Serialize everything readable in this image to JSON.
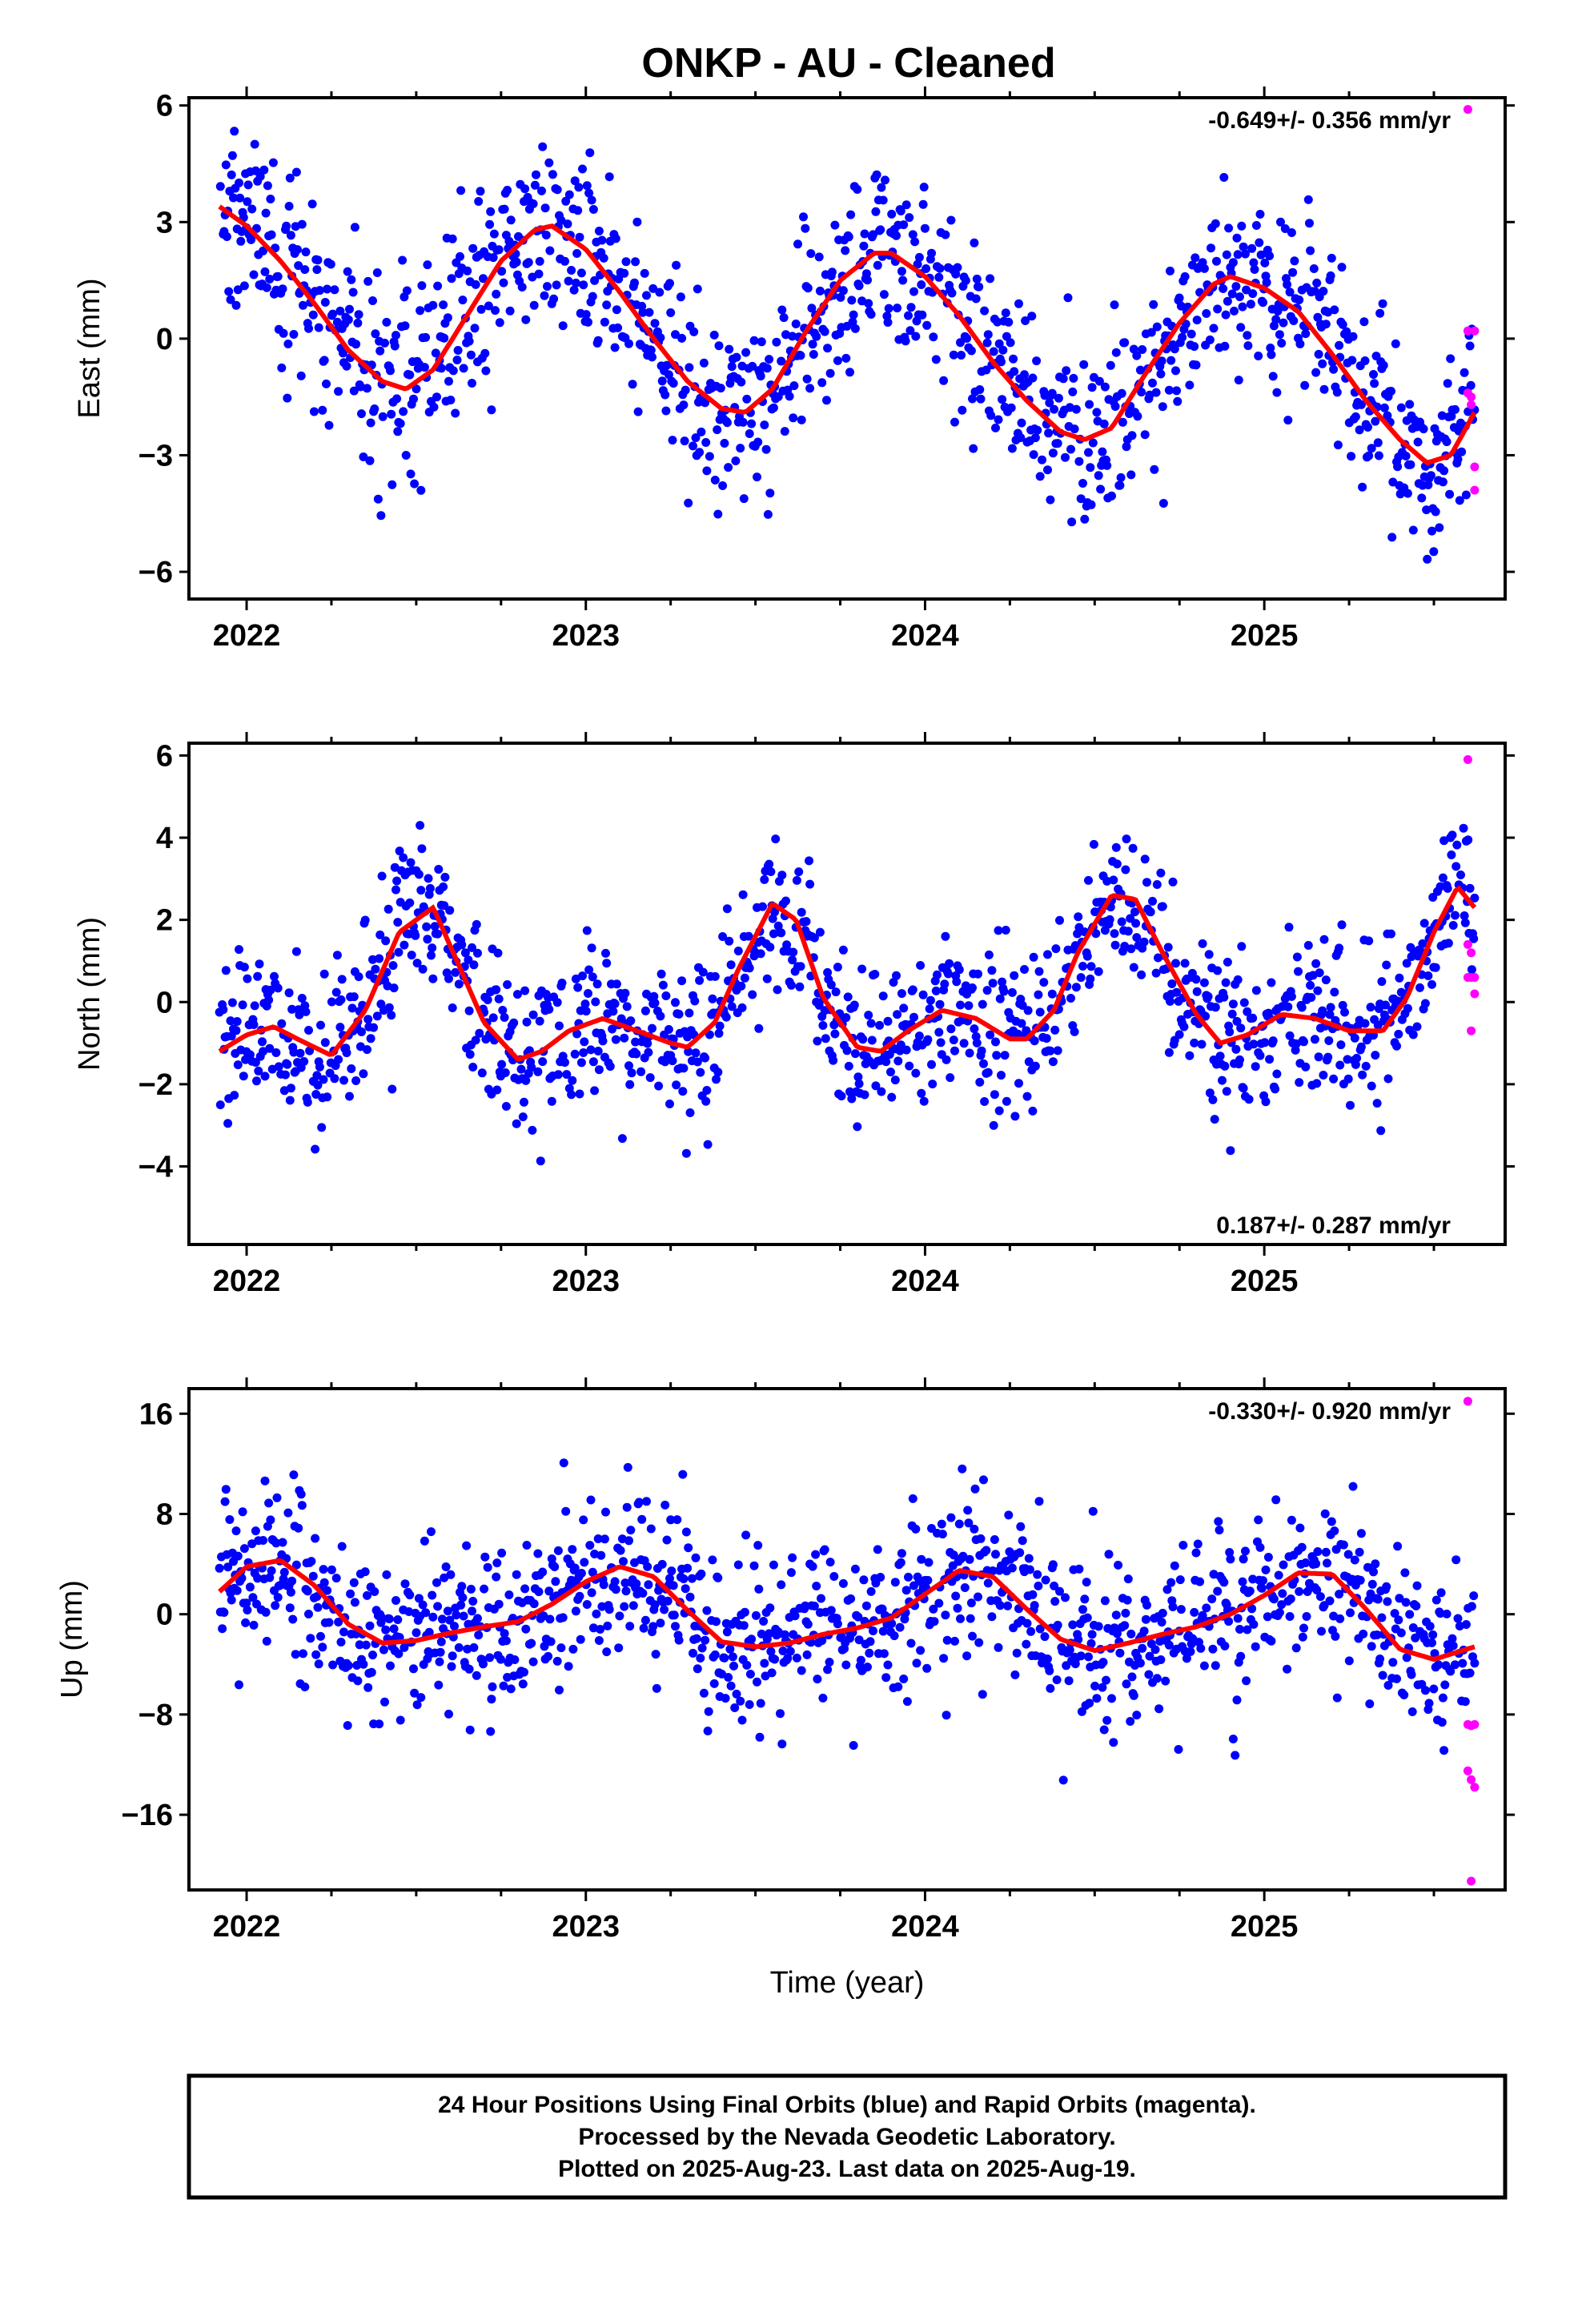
{
  "title": "ONKP  - AU - Cleaned",
  "xlabel": "Time (year)",
  "x_tick_labels": [
    "2022",
    "2023",
    "2024",
    "2025"
  ],
  "footer": {
    "line1": "24 Hour Positions Using Final Orbits (blue) and Rapid Orbits (magenta).",
    "line2": "Processed by the Nevada Geodetic Laboratory.",
    "line3": "Plotted on 2025-Aug-23. Last data on 2025-Aug-19."
  },
  "colors": {
    "final_orbits": "#0000ff",
    "rapid_orbits": "#ff00ff",
    "fit": "#ff0000"
  },
  "chart_data": [
    {
      "type": "scatter",
      "ylabel": "East (mm)",
      "rate_text": "-0.649+/- 0.356 mm/yr",
      "rate_position": "top-right",
      "xlim": [
        2021.83,
        2025.71
      ],
      "ylim": [
        -6.7,
        6.2
      ],
      "yticks": [
        6,
        3,
        0,
        -3,
        -6
      ],
      "ytick_labels": [
        "6",
        "3",
        "0",
        "−3",
        "−6"
      ],
      "fit_curve": {
        "x": [
          2021.92,
          2022.0,
          2022.1,
          2022.2,
          2022.3,
          2022.4,
          2022.47,
          2022.55,
          2022.65,
          2022.75,
          2022.85,
          2022.9,
          2023.0,
          2023.1,
          2023.2,
          2023.3,
          2023.4,
          2023.47,
          2023.55,
          2023.65,
          2023.75,
          2023.85,
          2023.9,
          2024.0,
          2024.1,
          2024.2,
          2024.3,
          2024.4,
          2024.47,
          2024.55,
          2024.65,
          2024.75,
          2024.85,
          2024.9,
          2025.0,
          2025.1,
          2025.2,
          2025.3,
          2025.4,
          2025.48,
          2025.55,
          2025.62
        ],
        "y": [
          3.4,
          2.9,
          2.0,
          0.9,
          -0.3,
          -1.1,
          -1.3,
          -0.8,
          0.6,
          2.0,
          2.8,
          2.9,
          2.3,
          1.2,
          0.0,
          -1.1,
          -1.8,
          -1.9,
          -1.3,
          0.2,
          1.5,
          2.2,
          2.2,
          1.6,
          0.6,
          -0.6,
          -1.6,
          -2.4,
          -2.6,
          -2.3,
          -0.9,
          0.4,
          1.4,
          1.6,
          1.3,
          0.7,
          -0.4,
          -1.6,
          -2.6,
          -3.2,
          -3.0,
          -1.9
        ]
      },
      "final_orbits": {
        "n_days": 1353,
        "x_start": 2021.92,
        "x_end": 2025.62,
        "model": "fit_curve plus daily scatter",
        "scatter_sd": 1.2
      },
      "rapid_orbits": {
        "x": [
          2025.6,
          2025.6,
          2025.6,
          2025.61,
          2025.61,
          2025.62,
          2025.62,
          2025.62
        ],
        "y": [
          5.9,
          0.2,
          -1.4,
          -1.5,
          -1.7,
          -3.3,
          -3.9,
          0.2
        ]
      }
    },
    {
      "type": "scatter",
      "ylabel": "North (mm)",
      "rate_text": "0.187+/- 0.287 mm/yr",
      "rate_position": "bottom-right",
      "xlim": [
        2021.83,
        2025.71
      ],
      "ylim": [
        -5.9,
        6.3
      ],
      "yticks": [
        6,
        4,
        2,
        0,
        -2,
        -4
      ],
      "ytick_labels": [
        "6",
        "4",
        "2",
        "0",
        "−2",
        "−4"
      ],
      "fit_curve": {
        "x": [
          2021.92,
          2022.0,
          2022.08,
          2022.15,
          2022.25,
          2022.35,
          2022.45,
          2022.55,
          2022.62,
          2022.7,
          2022.8,
          2022.87,
          2022.95,
          2023.05,
          2023.15,
          2023.25,
          2023.3,
          2023.38,
          2023.45,
          2023.55,
          2023.62,
          2023.7,
          2023.8,
          2023.87,
          2023.95,
          2024.05,
          2024.15,
          2024.25,
          2024.3,
          2024.38,
          2024.45,
          2024.55,
          2024.62,
          2024.7,
          2024.8,
          2024.87,
          2024.95,
          2025.05,
          2025.15,
          2025.25,
          2025.35,
          2025.42,
          2025.5,
          2025.57,
          2025.62
        ],
        "y": [
          -1.2,
          -0.8,
          -0.6,
          -0.9,
          -1.3,
          -0.2,
          1.7,
          2.3,
          1.0,
          -0.5,
          -1.4,
          -1.2,
          -0.7,
          -0.4,
          -0.7,
          -1.0,
          -1.1,
          -0.5,
          0.8,
          2.4,
          2.0,
          0.1,
          -1.1,
          -1.2,
          -0.7,
          -0.2,
          -0.4,
          -0.9,
          -0.9,
          -0.2,
          1.2,
          2.6,
          2.5,
          1.2,
          -0.3,
          -1.0,
          -0.8,
          -0.3,
          -0.4,
          -0.7,
          -0.7,
          0.1,
          1.7,
          2.8,
          2.3
        ]
      },
      "final_orbits": {
        "n_days": 1353,
        "x_start": 2021.92,
        "x_end": 2025.62,
        "model": "fit_curve plus daily scatter",
        "scatter_sd": 0.95
      },
      "rapid_orbits": {
        "x": [
          2025.6,
          2025.6,
          2025.6,
          2025.61,
          2025.61,
          2025.61,
          2025.62,
          2025.62
        ],
        "y": [
          5.9,
          1.4,
          0.6,
          1.2,
          0.6,
          -0.7,
          0.6,
          0.2
        ]
      }
    },
    {
      "type": "scatter",
      "ylabel": "Up (mm)",
      "rate_text": "-0.330+/- 0.920 mm/yr",
      "rate_position": "top-right",
      "xlim": [
        2021.83,
        2025.71
      ],
      "ylim": [
        -22,
        18
      ],
      "yticks": [
        16,
        8,
        0,
        -8,
        -16
      ],
      "ytick_labels": [
        "16",
        "8",
        "0",
        "−8",
        "−16"
      ],
      "fit_curve": {
        "x": [
          2021.92,
          2022.0,
          2022.1,
          2022.2,
          2022.3,
          2022.4,
          2022.5,
          2022.6,
          2022.7,
          2022.8,
          2022.9,
          2023.0,
          2023.1,
          2023.2,
          2023.3,
          2023.4,
          2023.5,
          2023.6,
          2023.7,
          2023.8,
          2023.9,
          2024.0,
          2024.1,
          2024.2,
          2024.3,
          2024.4,
          2024.5,
          2024.6,
          2024.7,
          2024.8,
          2024.9,
          2025.0,
          2025.1,
          2025.2,
          2025.3,
          2025.4,
          2025.5,
          2025.62
        ],
        "y": [
          1.8,
          3.8,
          4.3,
          2.3,
          -0.8,
          -2.3,
          -2.1,
          -1.5,
          -1.0,
          -0.6,
          0.8,
          2.6,
          3.8,
          3.0,
          0.3,
          -2.2,
          -2.6,
          -2.3,
          -1.6,
          -1.1,
          -0.3,
          1.6,
          3.5,
          3.0,
          0.4,
          -2.0,
          -2.9,
          -2.3,
          -1.6,
          -1.0,
          0.0,
          1.5,
          3.3,
          3.2,
          0.4,
          -2.8,
          -3.6,
          -2.6
        ]
      },
      "final_orbits": {
        "n_days": 1353,
        "x_start": 2021.92,
        "x_end": 2025.62,
        "model": "fit_curve plus daily scatter",
        "scatter_sd": 3.3
      },
      "rapid_orbits": {
        "x": [
          2025.6,
          2025.6,
          2025.6,
          2025.61,
          2025.61,
          2025.61,
          2025.62,
          2025.62
        ],
        "y": [
          17.0,
          -8.8,
          -12.5,
          -13.2,
          -8.9,
          -21.3,
          -13.8,
          -8.8
        ]
      }
    }
  ]
}
